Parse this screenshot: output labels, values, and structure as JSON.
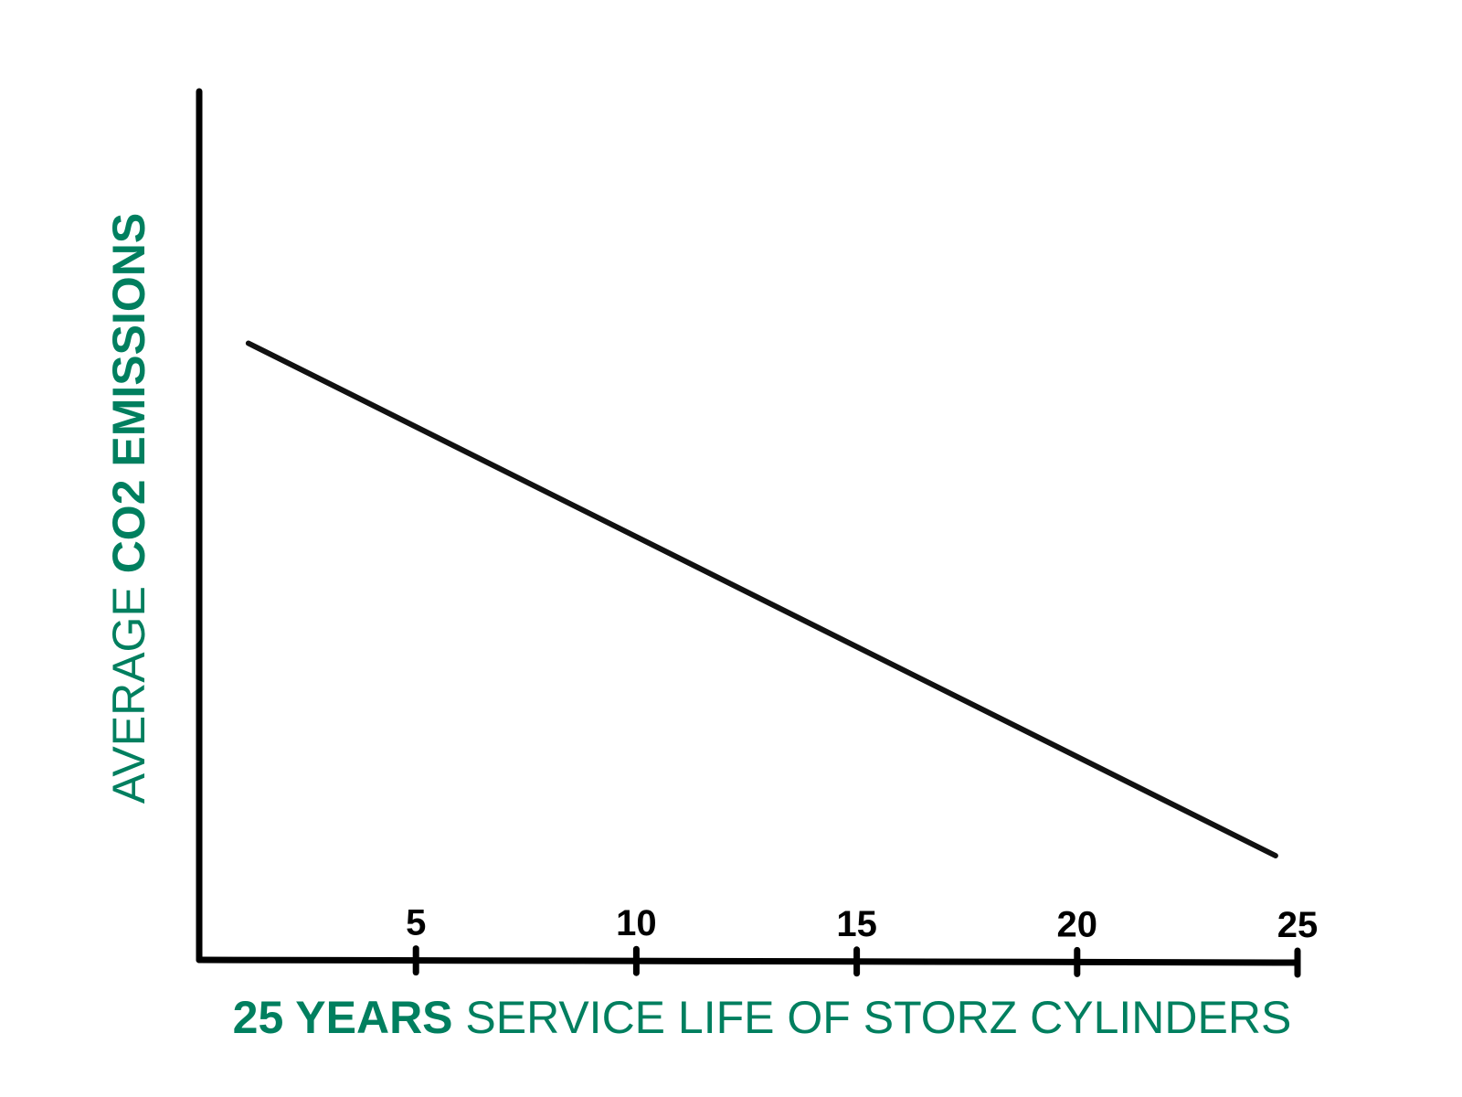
{
  "chart_data": {
    "type": "line",
    "title": "",
    "xlabel_bold": "25 YEARS",
    "xlabel_rest": " SERVICE LIFE OF STORZ CYLINDERS",
    "ylabel_rest": "AVERAGE ",
    "ylabel_bold": "CO2 EMISSIONS",
    "xlim": [
      0,
      25
    ],
    "ylim": [
      0,
      100
    ],
    "xticks": [
      5,
      10,
      15,
      20,
      25
    ],
    "xtick_labels": [
      "5",
      "10",
      "15",
      "20",
      "25"
    ],
    "grid": false,
    "series": [
      {
        "name": "CO2 emissions",
        "x": [
          1.2,
          24.5
        ],
        "y": [
          71,
          12
        ],
        "color": "#111111"
      }
    ],
    "label_color": "#007F5F",
    "axis_color": "#000000"
  }
}
